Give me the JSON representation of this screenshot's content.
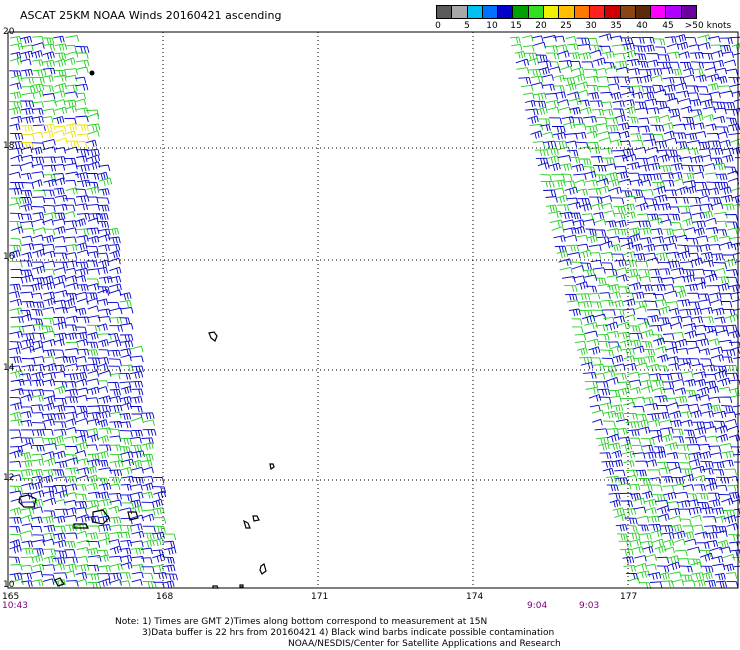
{
  "title": "ASCAT 25KM NOAA Winds 20160421 ascending",
  "legend": {
    "colors": [
      "#5a5a5a",
      "#a8a8a8",
      "#00c0f0",
      "#0070ff",
      "#0000c8",
      "#00a000",
      "#30e020",
      "#f0f000",
      "#ffc000",
      "#ff7800",
      "#ff2020",
      "#d00000",
      "#8b4513",
      "#5a2a0a",
      "#ff00ff",
      "#b000ff",
      "#6a00a0"
    ],
    "labels": [
      "0",
      "5",
      "10",
      "15",
      "20",
      "25",
      "30",
      "35",
      "40",
      "45",
      ">50 knots"
    ],
    "labels_x": [
      2,
      31,
      56,
      80,
      105,
      130,
      155,
      180,
      206,
      232,
      272
    ]
  },
  "axes": {
    "lon_ticks": [
      "165",
      "168",
      "171",
      "174",
      "177"
    ],
    "lat_ticks": [
      "20",
      "18",
      "16",
      "14",
      "12",
      "10"
    ]
  },
  "times": {
    "left": "10:43",
    "right_a": "9:04",
    "right_b": "9:03"
  },
  "notes": {
    "line1": "Note: 1) Times are GMT 2)Times along bottom correspond to measurement at 15N",
    "line2": "3)Data buffer is 22 hrs from 20160421 4) Black wind barbs indicate possible contamination",
    "line3": "NOAA/NESDIS/Center for Satellite Applications and Research"
  },
  "colors": {
    "blue_barb": "#0000cd",
    "green_barb": "#22cc22",
    "yellow_barb": "#f0e000",
    "grid": "#000000",
    "time_text": "#800080"
  }
}
